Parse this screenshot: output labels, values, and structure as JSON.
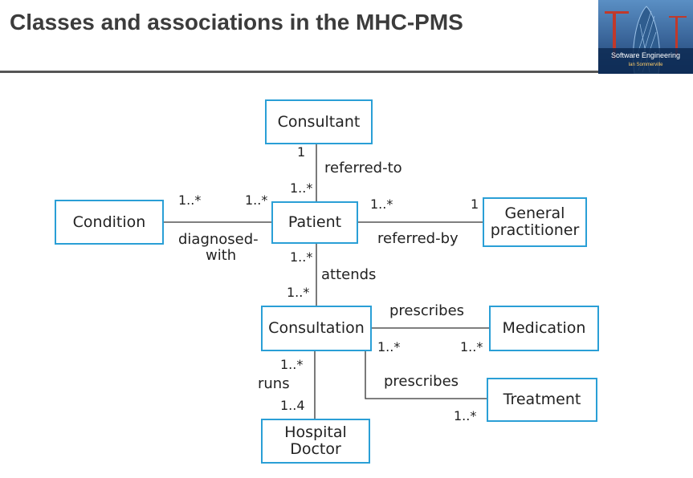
{
  "title": "Classes and associations in the MHC-PMS",
  "logo": {
    "text": "Software Engineering",
    "author": "Ian Sommerville"
  },
  "classes": {
    "consultant": "Consultant",
    "condition": "Condition",
    "patient": "Patient",
    "gp_line1": "General",
    "gp_line2": "practitioner",
    "consultation": "Consultation",
    "medication": "Medication",
    "treatment": "Treatment",
    "doctor_line1": "Hospital",
    "doctor_line2": "Doctor"
  },
  "associations": {
    "referred_to": "referred-to",
    "diagnosed_line1": "diagnosed-",
    "diagnosed_line2": "with",
    "referred_by": "referred-by",
    "attends": "attends",
    "prescribes_medication": "prescribes",
    "prescribes_treatment": "prescribes",
    "runs": "runs"
  },
  "multiplicities": {
    "consultant_end": "1",
    "patient_top": "1..*",
    "condition_end": "1..*",
    "patient_left": "1..*",
    "patient_right": "1..*",
    "gp_end": "1",
    "patient_bottom": "1..*",
    "consultation_top": "1..*",
    "consultation_medication": "1..*",
    "medication_end": "1..*",
    "treatment_end": "1..*",
    "consultation_bottom": "1..*",
    "doctor_end": "1..4"
  },
  "colors": {
    "box_border": "#2a9fd6",
    "annotation": "#e0302a",
    "title": "#3c3c3c"
  }
}
